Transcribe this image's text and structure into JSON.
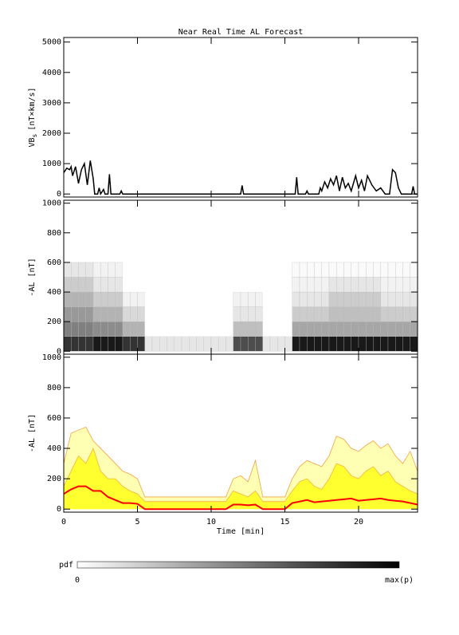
{
  "chart_data": [
    {
      "type": "line",
      "title": "Near Real Time AL Forecast",
      "ylabel": "VB",
      "ylabel_sub": "s",
      "ylabel_unit": "[nT×km/s]",
      "xlim": [
        0,
        24
      ],
      "xticks": [
        0,
        5,
        10,
        15,
        20
      ],
      "ylim": [
        -100,
        5150
      ],
      "yticks": [
        0,
        1000,
        2000,
        3000,
        4000,
        5000
      ],
      "color": "#000000",
      "x": [
        0,
        0.2,
        0.4,
        0.5,
        0.6,
        0.8,
        1.0,
        1.2,
        1.4,
        1.6,
        1.8,
        2.0,
        2.1,
        2.3,
        2.4,
        2.5,
        2.7,
        2.8,
        3.0,
        3.1,
        3.2,
        3.8,
        3.9,
        4.0,
        12.0,
        12.1,
        12.2,
        15.7,
        15.8,
        15.9,
        16.4,
        16.5,
        16.6,
        17.3,
        17.4,
        17.5,
        17.7,
        17.9,
        18.1,
        18.3,
        18.5,
        18.7,
        18.9,
        19.1,
        19.3,
        19.5,
        19.8,
        20.0,
        20.2,
        20.4,
        20.6,
        20.9,
        21.2,
        21.5,
        21.8,
        22.1,
        22.3,
        22.5,
        22.7,
        22.9,
        23.6,
        23.7,
        23.8,
        24
      ],
      "values": [
        700,
        850,
        800,
        900,
        600,
        900,
        350,
        800,
        1000,
        300,
        1100,
        500,
        0,
        0,
        200,
        0,
        150,
        0,
        0,
        650,
        0,
        0,
        100,
        0,
        0,
        280,
        0,
        0,
        550,
        0,
        0,
        100,
        0,
        0,
        200,
        100,
        400,
        200,
        500,
        300,
        600,
        100,
        550,
        200,
        350,
        100,
        600,
        200,
        450,
        100,
        600,
        300,
        100,
        200,
        0,
        0,
        800,
        700,
        200,
        0,
        0,
        250,
        0,
        0
      ]
    },
    {
      "type": "heatmap",
      "ylabel": "-AL [nT]",
      "xlim": [
        0,
        24
      ],
      "xticks": [
        0,
        5,
        10,
        15,
        20
      ],
      "ylim": [
        -20,
        1020
      ],
      "yticks": [
        0,
        200,
        400,
        600,
        800,
        1000
      ],
      "x_bins": [
        0,
        0.5,
        1,
        1.5,
        2,
        2.5,
        3,
        3.5,
        4,
        4.5,
        5,
        5.5,
        6,
        6.5,
        7,
        7.5,
        8,
        8.5,
        9,
        9.5,
        10,
        10.5,
        11,
        11.5,
        12,
        12.5,
        13,
        13.5,
        14,
        14.5,
        15,
        15.5,
        16,
        16.5,
        17,
        17.5,
        18,
        18.5,
        19,
        19.5,
        20,
        20.5,
        21,
        21.5,
        22,
        22.5,
        23,
        23.5,
        24
      ],
      "y_bins": [
        0,
        100,
        200,
        300,
        400,
        500,
        600
      ],
      "z": [
        [
          0.8,
          0.8,
          0.8,
          0.8,
          0.9,
          0.9,
          0.9,
          0.9,
          0.8,
          0.8,
          0.8,
          0.1,
          0.1,
          0.1,
          0.1,
          0.1,
          0.1,
          0.1,
          0.1,
          0.1,
          0.1,
          0.1,
          0.1,
          0.7,
          0.7,
          0.7,
          0.7,
          0.1,
          0.1,
          0.1,
          0.1,
          0.9,
          0.9,
          0.9,
          0.9,
          0.9,
          0.9,
          0.9,
          0.9,
          0.9,
          0.9,
          0.9,
          0.9,
          0.9,
          0.9,
          0.9,
          0.9,
          0.9
        ],
        [
          0.5,
          0.5,
          0.5,
          0.5,
          0.45,
          0.45,
          0.45,
          0.45,
          0.3,
          0.3,
          0.3,
          0,
          0,
          0,
          0,
          0,
          0,
          0,
          0,
          0,
          0,
          0,
          0,
          0.25,
          0.25,
          0.25,
          0.25,
          0,
          0,
          0,
          0,
          0.35,
          0.35,
          0.35,
          0.35,
          0.35,
          0.35,
          0.35,
          0.35,
          0.35,
          0.35,
          0.35,
          0.35,
          0.35,
          0.35,
          0.35,
          0.35,
          0.35
        ],
        [
          0.4,
          0.4,
          0.4,
          0.4,
          0.3,
          0.3,
          0.3,
          0.3,
          0.15,
          0.15,
          0.15,
          0,
          0,
          0,
          0,
          0,
          0,
          0,
          0,
          0,
          0,
          0,
          0,
          0.1,
          0.1,
          0.1,
          0.1,
          0,
          0,
          0,
          0,
          0.2,
          0.2,
          0.2,
          0.2,
          0.2,
          0.25,
          0.25,
          0.25,
          0.25,
          0.25,
          0.25,
          0.25,
          0.2,
          0.2,
          0.2,
          0.2,
          0.2
        ],
        [
          0.3,
          0.3,
          0.3,
          0.3,
          0.2,
          0.2,
          0.2,
          0.2,
          0.05,
          0.05,
          0.05,
          0,
          0,
          0,
          0,
          0,
          0,
          0,
          0,
          0,
          0,
          0,
          0,
          0.05,
          0.05,
          0.05,
          0.05,
          0,
          0,
          0,
          0,
          0.1,
          0.1,
          0.1,
          0.1,
          0.1,
          0.2,
          0.2,
          0.2,
          0.2,
          0.2,
          0.2,
          0.2,
          0.1,
          0.1,
          0.1,
          0.1,
          0.1
        ],
        [
          0.2,
          0.2,
          0.2,
          0.2,
          0.1,
          0.1,
          0.1,
          0.1,
          0,
          0,
          0,
          0,
          0,
          0,
          0,
          0,
          0,
          0,
          0,
          0,
          0,
          0,
          0,
          0,
          0,
          0,
          0,
          0,
          0,
          0,
          0,
          0.05,
          0.05,
          0.05,
          0.05,
          0.05,
          0.1,
          0.1,
          0.1,
          0.1,
          0.1,
          0.1,
          0.1,
          0.05,
          0.05,
          0.05,
          0.05,
          0.05
        ],
        [
          0.1,
          0.1,
          0.1,
          0.1,
          0.05,
          0.05,
          0.05,
          0.05,
          0,
          0,
          0,
          0,
          0,
          0,
          0,
          0,
          0,
          0,
          0,
          0,
          0,
          0,
          0,
          0,
          0,
          0,
          0,
          0,
          0,
          0,
          0,
          0.02,
          0.02,
          0.02,
          0.02,
          0.02,
          0.02,
          0.02,
          0.02,
          0.02,
          0.02,
          0.02,
          0.02,
          0.02,
          0.02,
          0.02,
          0.02,
          0.02
        ]
      ]
    },
    {
      "type": "area",
      "ylabel": "-AL [nT]",
      "xlabel": "Time [min]",
      "xlim": [
        0,
        24
      ],
      "xticks": [
        0,
        5,
        10,
        15,
        20
      ],
      "ylim": [
        -20,
        1020
      ],
      "yticks": [
        0,
        200,
        400,
        600,
        800,
        1000
      ],
      "x": [
        0,
        0.5,
        1,
        1.5,
        2,
        2.5,
        3,
        3.5,
        4,
        4.5,
        5,
        5.5,
        6,
        6.5,
        7,
        7.5,
        8,
        8.5,
        9,
        9.5,
        10,
        10.5,
        11,
        11.5,
        12,
        12.5,
        13,
        13.5,
        14,
        14.5,
        15,
        15.5,
        16,
        16.5,
        17,
        17.5,
        18,
        18.5,
        19,
        19.5,
        20,
        20.5,
        21,
        21.5,
        22,
        22.5,
        23,
        23.5,
        24
      ],
      "series": [
        {
          "kind": "area",
          "color": "#ffffb4",
          "edge": "#f5a040",
          "values": [
            300,
            500,
            520,
            540,
            450,
            400,
            350,
            300,
            250,
            230,
            200,
            80,
            80,
            80,
            80,
            80,
            80,
            80,
            80,
            80,
            80,
            80,
            80,
            200,
            220,
            180,
            320,
            80,
            80,
            80,
            80,
            200,
            280,
            320,
            300,
            280,
            350,
            480,
            460,
            400,
            380,
            420,
            450,
            400,
            430,
            350,
            300,
            380,
            250
          ]
        },
        {
          "kind": "area",
          "color": "#ffff30",
          "edge": "#f5b040",
          "values": [
            150,
            250,
            350,
            300,
            400,
            250,
            200,
            200,
            150,
            120,
            100,
            50,
            50,
            50,
            50,
            50,
            50,
            50,
            50,
            50,
            50,
            50,
            50,
            120,
            100,
            80,
            120,
            50,
            50,
            50,
            50,
            120,
            180,
            200,
            150,
            130,
            200,
            300,
            280,
            220,
            200,
            250,
            280,
            220,
            250,
            180,
            150,
            120,
            100
          ]
        },
        {
          "kind": "line",
          "color": "#ff0000",
          "values": [
            100,
            130,
            150,
            150,
            120,
            120,
            80,
            60,
            40,
            40,
            35,
            0,
            0,
            0,
            0,
            0,
            0,
            0,
            0,
            0,
            0,
            0,
            0,
            30,
            30,
            25,
            30,
            0,
            0,
            0,
            0,
            40,
            50,
            60,
            45,
            50,
            55,
            60,
            65,
            70,
            55,
            60,
            65,
            70,
            60,
            55,
            50,
            40,
            30
          ]
        }
      ]
    }
  ],
  "colorbar": {
    "label": "pdf",
    "min_label": "0",
    "max_label": "max(p)"
  }
}
